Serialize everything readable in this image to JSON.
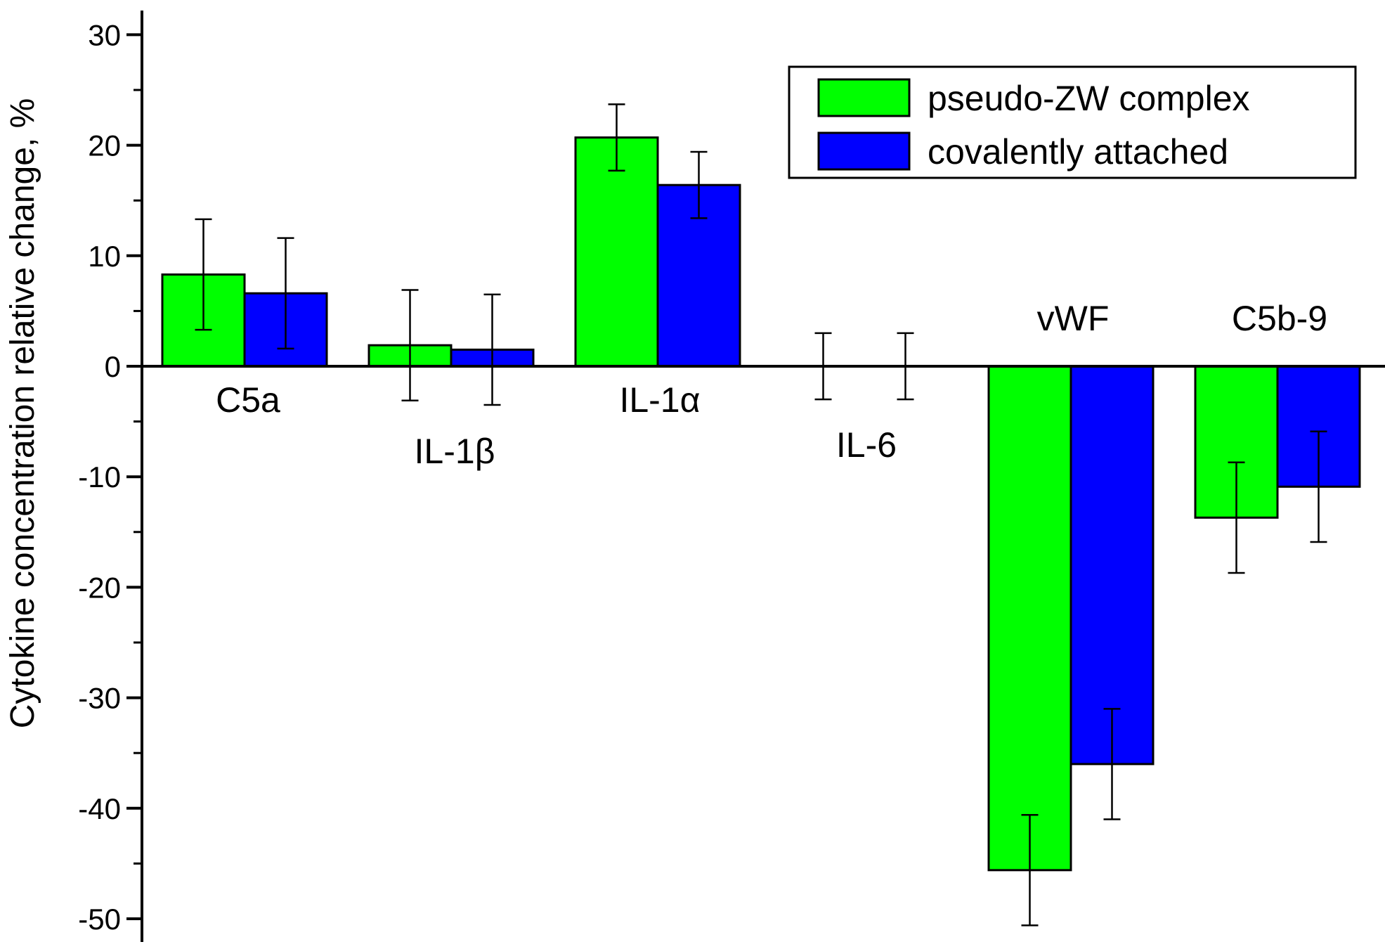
{
  "chart_data": {
    "type": "bar",
    "title": "",
    "xlabel": "",
    "ylabel": "Cytokine concentration relative change, %",
    "ylim": [
      -52,
      32
    ],
    "yticks": [
      30,
      20,
      10,
      0,
      -10,
      -20,
      -30,
      -40,
      -50
    ],
    "minor_ticks": true,
    "grid": false,
    "legend_position": "top-right",
    "categories": [
      "C5a",
      "IL-1β",
      "IL-1α",
      "IL-6",
      "vWF",
      "C5b-9"
    ],
    "series": [
      {
        "name": "pseudo-ZW complex",
        "color": "#00ff00",
        "values": [
          8.3,
          1.9,
          20.7,
          0,
          -45.6,
          -13.7
        ],
        "errors": [
          5.0,
          5.0,
          3.0,
          3.0,
          5.0,
          5.0
        ]
      },
      {
        "name": "covalently attached",
        "color": "#0000ff",
        "values": [
          6.6,
          1.5,
          16.4,
          0,
          -36.0,
          -10.9
        ],
        "errors": [
          5.0,
          5.0,
          3.0,
          3.0,
          5.0,
          5.0
        ]
      }
    ]
  }
}
